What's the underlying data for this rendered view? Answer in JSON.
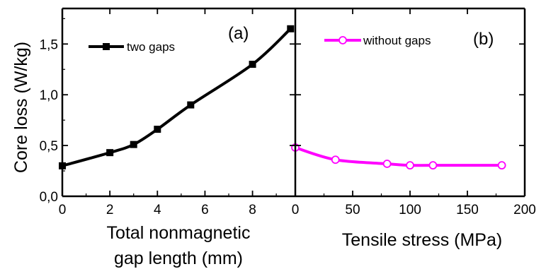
{
  "chart_data": [
    {
      "type": "line",
      "panel_label": "(a)",
      "ylabel": "Core loss (W/kg)",
      "xlabel_lines": [
        "Total nonmagnetic",
        "gap length (mm)"
      ],
      "xlim": [
        0,
        9.8
      ],
      "ylim": [
        0,
        1.85
      ],
      "xticks": [
        0,
        2,
        4,
        6,
        8
      ],
      "xtick_labels": [
        "0",
        "2",
        "4",
        "6",
        "8"
      ],
      "yticks": [
        0,
        0.5,
        1.0,
        1.5
      ],
      "ytick_labels": [
        "0,0",
        "0,5",
        "1,0",
        "1,5"
      ],
      "legend_position": "top-left",
      "series": [
        {
          "name": "two gaps",
          "color": "#000000",
          "marker": "filled-square",
          "x": [
            0,
            2,
            3,
            4,
            5.4,
            8,
            9.6
          ],
          "y": [
            0.3,
            0.43,
            0.51,
            0.66,
            0.9,
            1.3,
            1.65
          ]
        }
      ]
    },
    {
      "type": "line",
      "panel_label": "(b)",
      "xlabel": "Tensile stress (MPa)",
      "xlim": [
        0,
        200
      ],
      "ylim": [
        0,
        1.85
      ],
      "xticks": [
        0,
        50,
        100,
        150,
        200
      ],
      "xtick_labels": [
        "0",
        "50",
        "100",
        "150",
        "200"
      ],
      "legend_position": "top-left",
      "series": [
        {
          "name": "without gaps",
          "color": "#ff00ff",
          "marker": "open-circle",
          "x": [
            0,
            35,
            80,
            100,
            120,
            180
          ],
          "y": [
            0.48,
            0.36,
            0.32,
            0.305,
            0.305,
            0.305
          ]
        }
      ]
    }
  ]
}
